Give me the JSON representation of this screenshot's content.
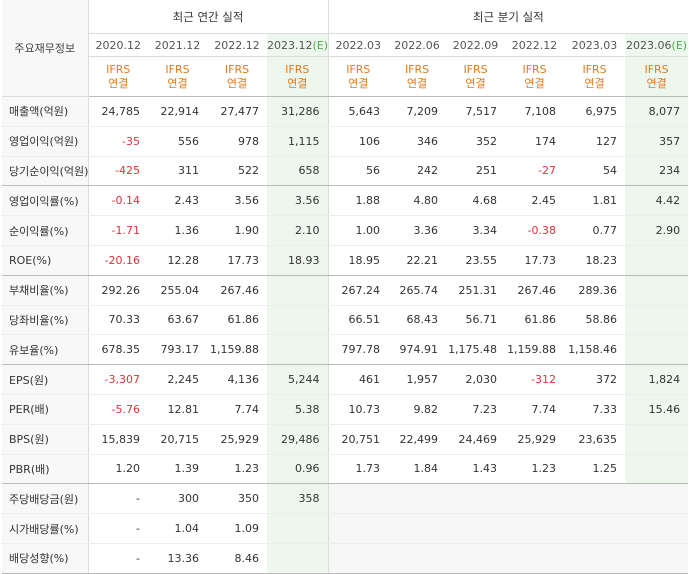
{
  "header": {
    "corner_label": "주요재무정보",
    "annual_title": "최근 연간 실적",
    "quarterly_title": "최근 분기 실적",
    "annual_periods": [
      "2020.12",
      "2021.12",
      "2022.12",
      "2023.12"
    ],
    "annual_estimate_mark": "(E)",
    "quarterly_periods": [
      "2022.03",
      "2022.06",
      "2022.09",
      "2022.12",
      "2023.03",
      "2023.06"
    ],
    "quarterly_estimate_mark": "(E)",
    "ifrs": "IFRS",
    "consolidated": "연결"
  },
  "rows": [
    {
      "label": "매출액(억원)",
      "annual": [
        "24,785",
        "22,914",
        "27,477",
        "31,286"
      ],
      "quarterly": [
        "5,643",
        "7,209",
        "7,517",
        "7,108",
        "6,975",
        "8,077"
      ]
    },
    {
      "label": "영업이익(억원)",
      "annual": [
        "-35",
        "556",
        "978",
        "1,115"
      ],
      "quarterly": [
        "106",
        "346",
        "352",
        "174",
        "127",
        "357"
      ]
    },
    {
      "label": "당기순이익(억원)",
      "annual": [
        "-425",
        "311",
        "522",
        "658"
      ],
      "quarterly": [
        "56",
        "242",
        "251",
        "-27",
        "54",
        "234"
      ]
    },
    {
      "label": "영업이익률(%)",
      "annual": [
        "-0.14",
        "2.43",
        "3.56",
        "3.56"
      ],
      "quarterly": [
        "1.88",
        "4.80",
        "4.68",
        "2.45",
        "1.81",
        "4.42"
      ]
    },
    {
      "label": "순이익률(%)",
      "annual": [
        "-1.71",
        "1.36",
        "1.90",
        "2.10"
      ],
      "quarterly": [
        "1.00",
        "3.36",
        "3.34",
        "-0.38",
        "0.77",
        "2.90"
      ]
    },
    {
      "label": "ROE(%)",
      "annual": [
        "-20.16",
        "12.28",
        "17.73",
        "18.93"
      ],
      "quarterly": [
        "18.95",
        "22.21",
        "23.55",
        "17.73",
        "18.23",
        ""
      ]
    },
    {
      "label": "부채비율(%)",
      "annual": [
        "292.26",
        "255.04",
        "267.46",
        ""
      ],
      "quarterly": [
        "267.24",
        "265.74",
        "251.31",
        "267.46",
        "289.36",
        ""
      ]
    },
    {
      "label": "당좌비율(%)",
      "annual": [
        "70.33",
        "63.67",
        "61.86",
        ""
      ],
      "quarterly": [
        "66.51",
        "68.43",
        "56.71",
        "61.86",
        "58.86",
        ""
      ]
    },
    {
      "label": "유보율(%)",
      "annual": [
        "678.35",
        "793.17",
        "1,159.88",
        ""
      ],
      "quarterly": [
        "797.78",
        "974.91",
        "1,175.48",
        "1,159.88",
        "1,158.46",
        ""
      ]
    },
    {
      "label": "EPS(원)",
      "annual": [
        "-3,307",
        "2,245",
        "4,136",
        "5,244"
      ],
      "quarterly": [
        "461",
        "1,957",
        "2,030",
        "-312",
        "372",
        "1,824"
      ]
    },
    {
      "label": "PER(배)",
      "annual": [
        "-5.76",
        "12.81",
        "7.74",
        "5.38"
      ],
      "quarterly": [
        "10.73",
        "9.82",
        "7.23",
        "7.74",
        "7.33",
        "15.46"
      ]
    },
    {
      "label": "BPS(원)",
      "annual": [
        "15,839",
        "20,715",
        "25,929",
        "29,486"
      ],
      "quarterly": [
        "20,751",
        "22,499",
        "24,469",
        "25,929",
        "23,635",
        ""
      ]
    },
    {
      "label": "PBR(배)",
      "annual": [
        "1.20",
        "1.39",
        "1.23",
        "0.96"
      ],
      "quarterly": [
        "1.73",
        "1.84",
        "1.43",
        "1.23",
        "1.25",
        ""
      ]
    },
    {
      "label": "주당배당금(원)",
      "annual": [
        "-",
        "300",
        "350",
        "358"
      ],
      "quarterly": [
        "",
        "",
        "",
        "",
        "",
        ""
      ]
    },
    {
      "label": "시가배당률(%)",
      "annual": [
        "-",
        "1.04",
        "1.09",
        ""
      ],
      "quarterly": [
        "",
        "",
        "",
        "",
        "",
        ""
      ]
    },
    {
      "label": "배당성향(%)",
      "annual": [
        "-",
        "13.36",
        "8.46",
        ""
      ],
      "quarterly": [
        "",
        "",
        "",
        "",
        "",
        ""
      ]
    }
  ],
  "colors": {
    "negative": "#e0333b",
    "ifrs": "#e07a1e",
    "estimate": "#4caa4c",
    "estimate_bg": "#eef7ee"
  }
}
